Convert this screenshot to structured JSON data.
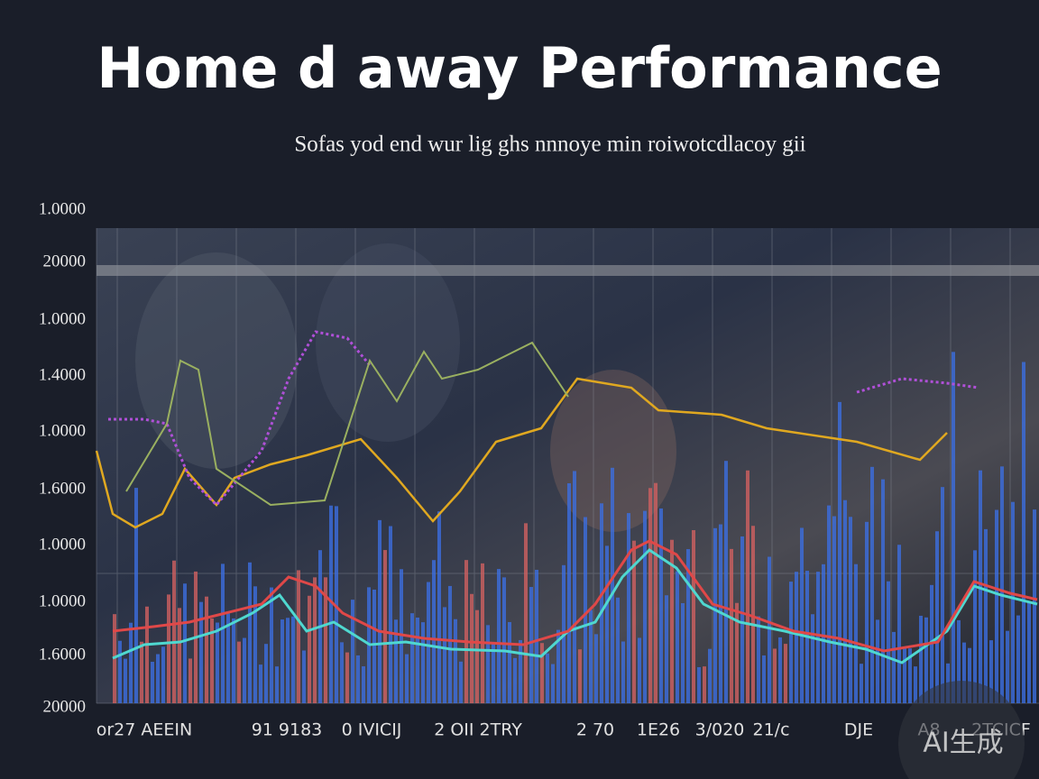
{
  "title": "Home d away Performance",
  "subtitle": "Sofas yod end wur lig ghs nnnoye min roiwotcdlacoy gii",
  "y_axis_labels": [
    "1.0000",
    "20000",
    "1.0000",
    "1.4000",
    "1.0000",
    "1.6000",
    "1.0000",
    "1.0000",
    "1.6000",
    "20000"
  ],
  "x_axis_labels": [
    "or27 AEEIN",
    "91 9183",
    "0 IVICIJ",
    "2 OII 2TRY",
    "2 70",
    "1E26",
    "3/020",
    "21/c",
    "DJE",
    "A8",
    "2TCICF"
  ],
  "watermark": "AI生成"
}
